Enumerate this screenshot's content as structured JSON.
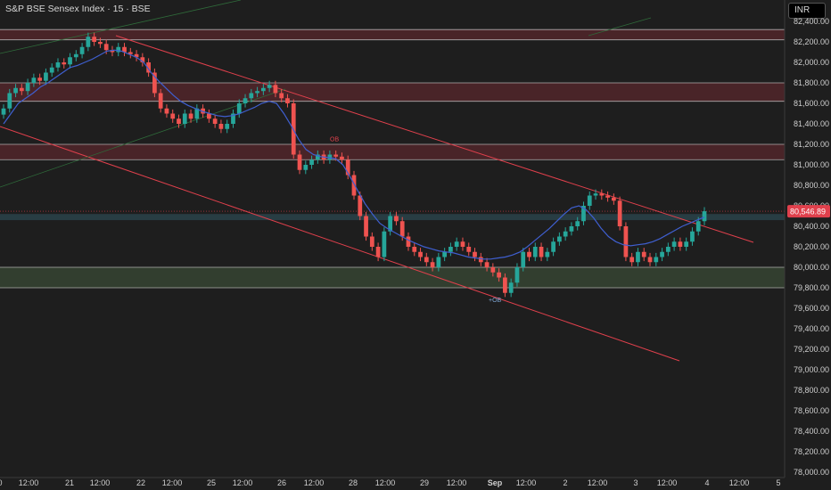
{
  "title": "S&P BSE Sensex Index · 15 · BSE",
  "currency": "INR",
  "colors": {
    "background": "#1e1e1e",
    "up": "#26a69a",
    "down": "#ef5350",
    "supply_zone": "#6e2a32",
    "demand_zone": "#3a4a35",
    "channel": "#e0404c",
    "ema": "#3f5fd0",
    "price_badge": "#e0404c"
  },
  "chart_data": {
    "type": "candlestick",
    "title": "S&P BSE Sensex Index · 15 · BSE",
    "ylim": [
      78000,
      82600
    ],
    "y_ticks": [
      "82,400.00",
      "82,200.00",
      "82,000.00",
      "81,800.00",
      "81,600.00",
      "81,400.00",
      "81,200.00",
      "81,000.00",
      "80,800.00",
      "80,600.00",
      "80,400.00",
      "80,200.00",
      "80,000.00",
      "79,800.00",
      "79,600.00",
      "79,400.00",
      "79,200.00",
      "79,000.00",
      "78,800.00",
      "78,600.00",
      "78,400.00",
      "78,200.00",
      "78,000.00"
    ],
    "x_ticks": [
      {
        "label": "0",
        "bold": false
      },
      {
        "label": "12:00",
        "bold": false
      },
      {
        "label": "21",
        "bold": false
      },
      {
        "label": "12:00",
        "bold": false
      },
      {
        "label": "22",
        "bold": false
      },
      {
        "label": "12:00",
        "bold": false
      },
      {
        "label": "25",
        "bold": false
      },
      {
        "label": "12:00",
        "bold": false
      },
      {
        "label": "26",
        "bold": false
      },
      {
        "label": "12:00",
        "bold": false
      },
      {
        "label": "28",
        "bold": false
      },
      {
        "label": "12:00",
        "bold": false
      },
      {
        "label": "29",
        "bold": false
      },
      {
        "label": "12:00",
        "bold": false
      },
      {
        "label": "Sep",
        "bold": true
      },
      {
        "label": "12:00",
        "bold": false
      },
      {
        "label": "2",
        "bold": false
      },
      {
        "label": "12:00",
        "bold": false
      },
      {
        "label": "3",
        "bold": false
      },
      {
        "label": "12:00",
        "bold": false
      },
      {
        "label": "4",
        "bold": false
      },
      {
        "label": "12:00",
        "bold": false
      },
      {
        "label": "5",
        "bold": false
      }
    ],
    "last_price": "80,546.89",
    "last_price_value": 80546.89,
    "zones": [
      {
        "kind": "supply",
        "from": 82220,
        "to": 82320
      },
      {
        "kind": "supply",
        "from": 81620,
        "to": 81800
      },
      {
        "kind": "supply",
        "from": 81050,
        "to": 81200
      },
      {
        "kind": "demand",
        "from": 79800,
        "to": 80000
      },
      {
        "kind": "liquidity",
        "from": 80460,
        "to": 80520
      }
    ],
    "annotations": [
      "OB",
      "+OB"
    ],
    "series": [
      {
        "kind": "price",
        "values": [
          81550,
          81700,
          81750,
          81720,
          81800,
          81850,
          81820,
          81900,
          81950,
          82000,
          81980,
          82050,
          82080,
          82150,
          82250,
          82200,
          82180,
          82120,
          82100,
          82150,
          82100,
          82080,
          82050,
          82000,
          81900,
          81700,
          81550,
          81500,
          81450,
          81400,
          81500,
          81450,
          81550,
          81500,
          81450,
          81400,
          81350,
          81400,
          81500,
          81600,
          81650,
          81700,
          81720,
          81750,
          81780,
          81700,
          81650,
          81600,
          81100,
          80950,
          81000,
          81050,
          81100,
          81050,
          81100,
          81080,
          81050,
          80900,
          80700,
          80500,
          80300,
          80200,
          80100,
          80350,
          80500,
          80450,
          80300,
          80200,
          80150,
          80100,
          80050,
          80000,
          80100,
          80150,
          80200,
          80250,
          80200,
          80150,
          80100,
          80050,
          80000,
          79950,
          79900,
          79750,
          79850,
          80000,
          80150,
          80100,
          80200,
          80100,
          80150,
          80250,
          80300,
          80350,
          80400,
          80450,
          80600,
          80700,
          80720,
          80700,
          80680,
          80650,
          80400,
          80100,
          80050,
          80150,
          80100,
          80050,
          80100,
          80150,
          80200,
          80250,
          80200,
          80250,
          80350,
          80450,
          80546.89
        ]
      },
      {
        "kind": "ema",
        "values": [
          81400,
          81500,
          81600,
          81650,
          81700,
          81760,
          81800,
          81850,
          81900,
          81950,
          81970,
          82000,
          82030,
          82070,
          82110,
          82120,
          82110,
          82080,
          82050,
          82000,
          81900,
          81820,
          81750,
          81680,
          81620,
          81580,
          81550,
          81520,
          81500,
          81480,
          81470,
          81480,
          81500,
          81530,
          81560,
          81600,
          81620,
          81600,
          81500,
          81380,
          81250,
          81150,
          81100,
          81080,
          81070,
          81060,
          81000,
          80880,
          80750,
          80620,
          80520,
          80430,
          80380,
          80340,
          80300,
          80260,
          80230,
          80200,
          80180,
          80160,
          80150,
          80140,
          80120,
          80100,
          80090,
          80080,
          80080,
          80090,
          80100,
          80120,
          80150,
          80200,
          80260,
          80320,
          80380,
          80450,
          80520,
          80580,
          80600,
          80560,
          80480,
          80380,
          80300,
          80250,
          80220,
          80210,
          80220,
          80230,
          80250,
          80280,
          80320,
          80360,
          80400,
          80430,
          80460,
          80490
        ]
      }
    ]
  }
}
